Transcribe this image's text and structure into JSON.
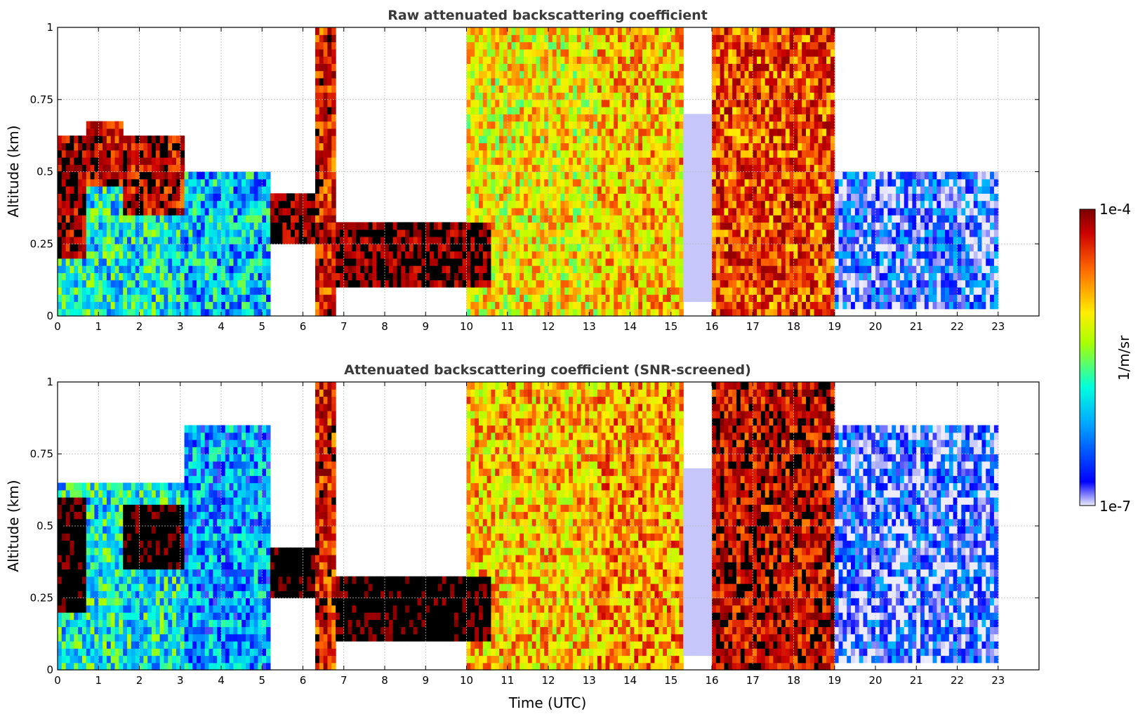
{
  "chart_data": [
    {
      "type": "heatmap",
      "title": "Raw attenuated backscattering coefficient",
      "xlabel": "",
      "ylabel": "Altitude (km)",
      "xlim": [
        0,
        24
      ],
      "ylim": [
        0,
        1
      ],
      "x_ticks": [
        "0",
        "1",
        "2",
        "3",
        "4",
        "5",
        "6",
        "7",
        "8",
        "9",
        "10",
        "11",
        "12",
        "13",
        "14",
        "15",
        "16",
        "17",
        "18",
        "19",
        "20",
        "21",
        "22",
        "23"
      ],
      "y_ticks": [
        "0",
        "0.25",
        "0.5",
        "0.75",
        "1"
      ],
      "grid": true,
      "data_extent_hours": [
        0,
        23
      ],
      "features": [
        {
          "t0": 0.0,
          "t1": 3.1,
          "base_km": 0.0,
          "top_km": 0.55,
          "level": 0.35
        },
        {
          "t0": 0.0,
          "t1": 0.7,
          "base_km": 0.2,
          "top_km": 0.62,
          "level": 0.95
        },
        {
          "t0": 0.7,
          "t1": 1.6,
          "base_km": 0.45,
          "top_km": 0.68,
          "level": 0.9
        },
        {
          "t0": 1.6,
          "t1": 3.1,
          "base_km": 0.35,
          "top_km": 0.62,
          "level": 0.9
        },
        {
          "t0": 3.1,
          "t1": 5.2,
          "base_km": 0.0,
          "top_km": 0.5,
          "level": 0.3
        },
        {
          "t0": 5.2,
          "t1": 6.3,
          "base_km": 0.25,
          "top_km": 0.42,
          "level": 1.0
        },
        {
          "t0": 6.3,
          "t1": 6.8,
          "base_km": 0.0,
          "top_km": 1.0,
          "level": 0.85
        },
        {
          "t0": 6.8,
          "t1": 10.6,
          "base_km": 0.1,
          "top_km": 0.32,
          "level": 1.0
        },
        {
          "t0": 10.0,
          "t1": 13.2,
          "base_km": 0.0,
          "top_km": 1.0,
          "level": 0.6
        },
        {
          "t0": 13.2,
          "t1": 15.3,
          "base_km": 0.0,
          "top_km": 1.0,
          "level": 0.65
        },
        {
          "t0": 15.3,
          "t1": 16.0,
          "base_km": 0.05,
          "top_km": 0.7,
          "level": 0.02
        },
        {
          "t0": 16.0,
          "t1": 19.0,
          "base_km": 0.0,
          "top_km": 1.0,
          "level": 0.8
        },
        {
          "t0": 19.0,
          "t1": 23.0,
          "base_km": 0.03,
          "top_km": 0.5,
          "level": 0.12
        }
      ]
    },
    {
      "type": "heatmap",
      "title": "Attenuated backscattering coefficient (SNR-screened)",
      "xlabel": "Time (UTC)",
      "ylabel": "Altitude (km)",
      "xlim": [
        0,
        24
      ],
      "ylim": [
        0,
        1
      ],
      "x_ticks": [
        "0",
        "1",
        "2",
        "3",
        "4",
        "5",
        "6",
        "7",
        "8",
        "9",
        "10",
        "11",
        "12",
        "13",
        "14",
        "15",
        "16",
        "17",
        "18",
        "19",
        "20",
        "21",
        "22",
        "23"
      ],
      "y_ticks": [
        "0",
        "0.25",
        "0.5",
        "0.75",
        "1"
      ],
      "grid": true,
      "data_extent_hours": [
        0,
        23
      ],
      "features": [
        {
          "t0": 0.0,
          "t1": 3.1,
          "base_km": 0.0,
          "top_km": 0.65,
          "level": 0.35
        },
        {
          "t0": 0.0,
          "t1": 0.7,
          "base_km": 0.2,
          "top_km": 0.6,
          "level": 1.1
        },
        {
          "t0": 1.6,
          "t1": 3.1,
          "base_km": 0.35,
          "top_km": 0.58,
          "level": 1.1
        },
        {
          "t0": 3.1,
          "t1": 5.2,
          "base_km": 0.0,
          "top_km": 0.85,
          "level": 0.25
        },
        {
          "t0": 5.2,
          "t1": 6.3,
          "base_km": 0.25,
          "top_km": 0.42,
          "level": 1.1
        },
        {
          "t0": 6.3,
          "t1": 6.8,
          "base_km": 0.0,
          "top_km": 1.0,
          "level": 0.85
        },
        {
          "t0": 6.8,
          "t1": 10.6,
          "base_km": 0.1,
          "top_km": 0.32,
          "level": 1.1
        },
        {
          "t0": 10.0,
          "t1": 13.2,
          "base_km": 0.0,
          "top_km": 1.0,
          "level": 0.65
        },
        {
          "t0": 13.2,
          "t1": 15.3,
          "base_km": 0.0,
          "top_km": 1.0,
          "level": 0.7
        },
        {
          "t0": 15.3,
          "t1": 16.0,
          "base_km": 0.05,
          "top_km": 0.7,
          "level": 0.02
        },
        {
          "t0": 16.0,
          "t1": 19.0,
          "base_km": 0.0,
          "top_km": 1.0,
          "level": 0.9
        },
        {
          "t0": 19.0,
          "t1": 23.0,
          "base_km": 0.03,
          "top_km": 0.85,
          "level": 0.1
        }
      ]
    }
  ],
  "colorbar": {
    "max_label": "1e-4",
    "min_label": "1e-7",
    "unit_label": "1/m/sr",
    "colormap": "jet",
    "colors": [
      "#ececfa",
      "#0000ff",
      "#00aaff",
      "#00ffdd",
      "#aaff00",
      "#ffee00",
      "#ff6600",
      "#cc0000",
      "#7a0000"
    ],
    "saturation_color": "#000000"
  }
}
